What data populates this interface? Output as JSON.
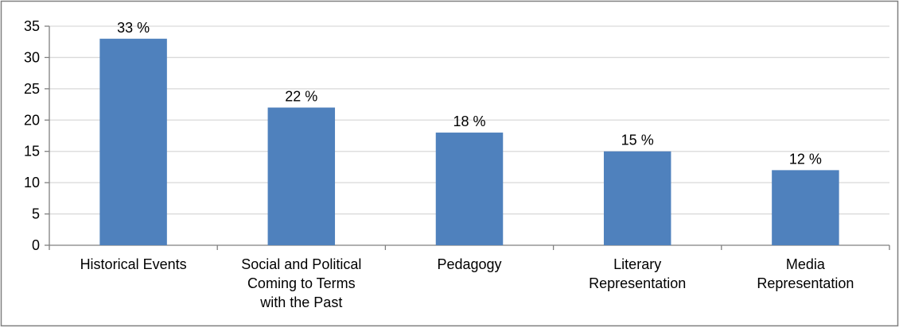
{
  "chart_data": {
    "type": "bar",
    "title": "",
    "xlabel": "",
    "ylabel": "",
    "ylim": [
      0,
      35
    ],
    "y_ticks": [
      0,
      5,
      10,
      15,
      20,
      25,
      30,
      35
    ],
    "grid": true,
    "legend": "none",
    "categories": [
      [
        "Historical Events"
      ],
      [
        "Social and Political",
        "Coming to Terms",
        "with the Past"
      ],
      [
        "Pedagogy"
      ],
      [
        "Literary",
        "Representation"
      ],
      [
        "Media",
        "Representation"
      ]
    ],
    "values": [
      33,
      22,
      18,
      15,
      12
    ],
    "data_labels": [
      "33 %",
      "22 %",
      "18 %",
      "15 %",
      "12 %"
    ],
    "bar_color": "#4F81BD",
    "grid_color": "#D9D9D9",
    "axis_color": "#808080",
    "frame_color": "#808080"
  }
}
